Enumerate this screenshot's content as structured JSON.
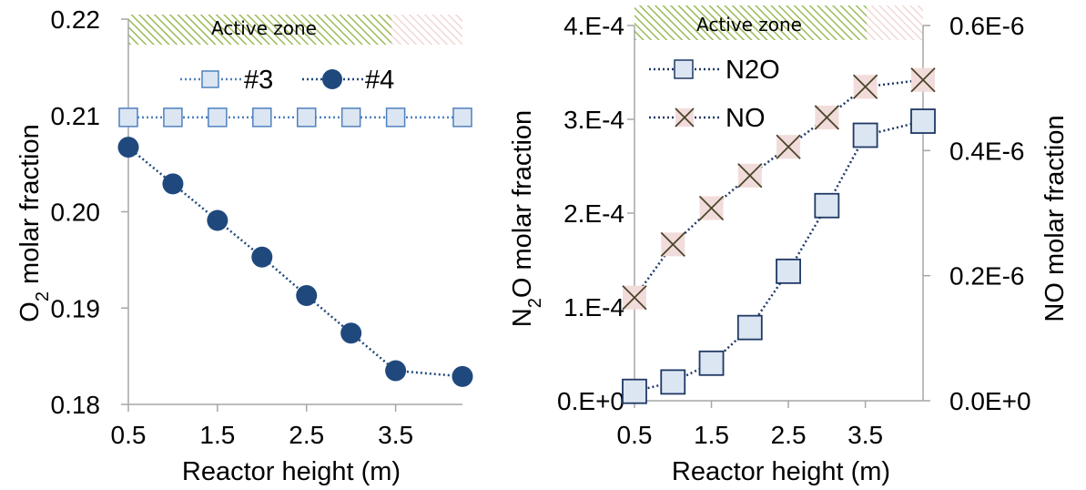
{
  "chart_data": [
    {
      "type": "line",
      "x": [
        0.5,
        1.0,
        1.5,
        2.0,
        2.5,
        3.0,
        3.5,
        4.25
      ],
      "xticks": [
        "0.5",
        "1.5",
        "2.5",
        "3.5"
      ],
      "yticks": [
        "0.18",
        "0.19",
        "0.20",
        "0.21",
        "0.22"
      ],
      "xlabel": "Reactor height (m)",
      "ylabel": {
        "main": "O",
        "sub": "2",
        "rest": " molar fraction"
      },
      "xlim": [
        0.5,
        4.25
      ],
      "ylim": [
        0.18,
        0.22
      ],
      "zone_label": "Active zone",
      "active_zone": [
        0.5,
        3.5
      ],
      "grid": false,
      "legend_position": "top",
      "series": [
        {
          "name": "#3",
          "marker": "square",
          "values": [
            0.2098,
            0.2098,
            0.2098,
            0.2098,
            0.2098,
            0.2098,
            0.2098,
            0.2098
          ]
        },
        {
          "name": "#4",
          "marker": "circle",
          "values": [
            0.2067,
            0.2029,
            0.1991,
            0.1953,
            0.1913,
            0.1874,
            0.1835,
            0.1829
          ]
        }
      ]
    },
    {
      "type": "line",
      "x": [
        0.5,
        1.0,
        1.5,
        2.0,
        2.5,
        3.0,
        3.5,
        4.25
      ],
      "xticks": [
        "0.5",
        "1.5",
        "2.5",
        "3.5"
      ],
      "yticks_left": [
        "0.E+0",
        "1.E-4",
        "2.E-4",
        "3.E-4",
        "4.E-4"
      ],
      "yticks_right": [
        "0.0E+0",
        "0.2E-6",
        "0.4E-6",
        "0.6E-6"
      ],
      "xlabel": "Reactor height (m)",
      "ylabel_left": {
        "main": "N",
        "sub": "2",
        "rest": "O molar fraction"
      },
      "ylabel_right": "NO molar fraction",
      "xlim": [
        0.5,
        4.25
      ],
      "ylim_left": [
        0,
        0.0004
      ],
      "ylim_right": [
        0,
        6e-07
      ],
      "zone_label": "Active zone",
      "active_zone": [
        0.5,
        3.5
      ],
      "grid": false,
      "legend_position": "top-left",
      "series": [
        {
          "name": "N2O",
          "axis": "left",
          "marker": "square",
          "values": [
            1e-05,
            2e-05,
            4e-05,
            7.8e-05,
            0.000138,
            0.000208,
            0.000283,
            0.000298
          ]
        },
        {
          "name": "NO",
          "axis": "right",
          "marker": "x",
          "values": [
            1.65e-07,
            2.5e-07,
            3.08e-07,
            3.6e-07,
            4.06e-07,
            4.53e-07,
            5.02e-07,
            5.13e-07
          ]
        }
      ]
    }
  ],
  "colors": {
    "square_fill": "#dce6f2",
    "square_stroke": "#4f81bd",
    "square_stroke_dark": "#1f3864",
    "circle": "#1f497d",
    "x_fill": "#f2dcdb",
    "x_stroke": "#4a452a",
    "active_hatch": "#9bbb59",
    "inactive_hatch": "#e6b9b8",
    "axis": "#a6a6a6",
    "text": "#000000"
  }
}
